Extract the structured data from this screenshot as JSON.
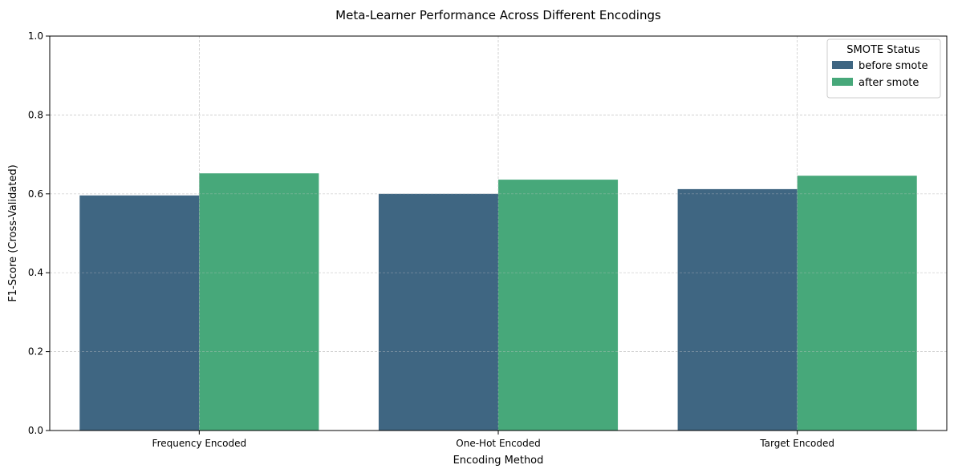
{
  "chart_data": {
    "type": "bar",
    "title": "Meta-Learner Performance Across Different Encodings",
    "xlabel": "Encoding Method",
    "ylabel": "F1-Score (Cross-Validated)",
    "categories": [
      "Frequency Encoded",
      "One-Hot Encoded",
      "Target Encoded"
    ],
    "series": [
      {
        "name": "before smote",
        "color": "#3f6682",
        "values": [
          0.596,
          0.6,
          0.612
        ]
      },
      {
        "name": "after smote",
        "color": "#47a87a",
        "values": [
          0.652,
          0.636,
          0.646
        ]
      }
    ],
    "ylim": [
      0,
      1.0
    ],
    "yticks": [
      "0.0",
      "0.2",
      "0.4",
      "0.6",
      "0.8",
      "1.0"
    ],
    "grid": true,
    "legend": {
      "title": "SMOTE Status",
      "placement": "top-right"
    }
  }
}
